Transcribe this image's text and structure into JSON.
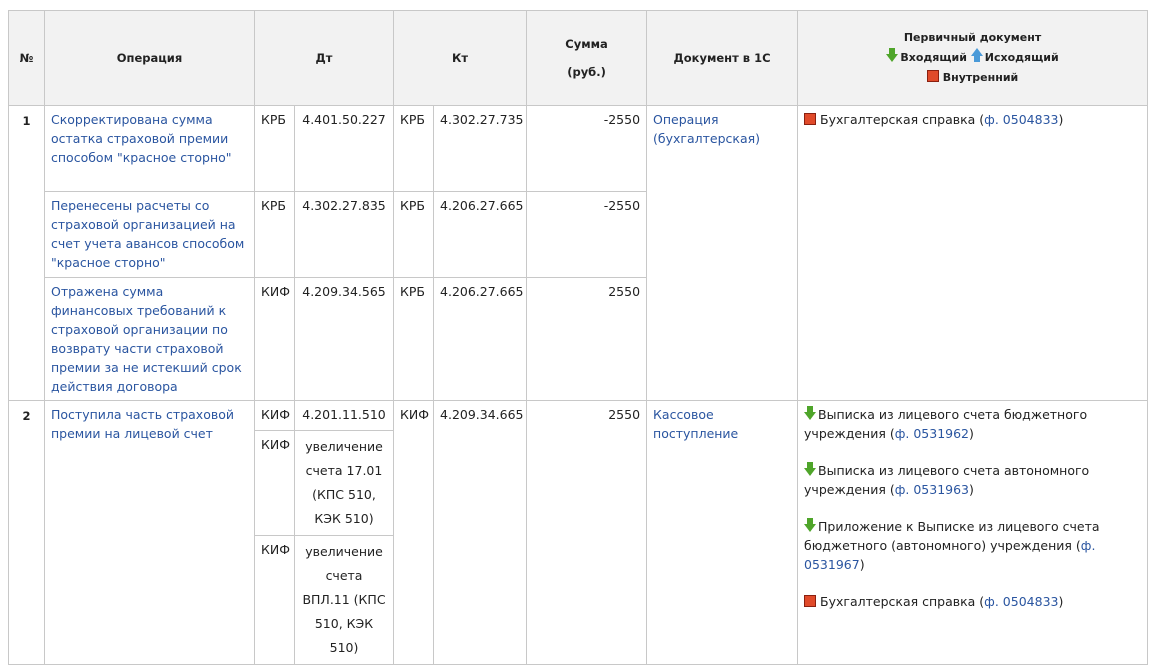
{
  "headers": {
    "num": "№",
    "operation": "Операция",
    "dt": "Дт",
    "kt": "Кт",
    "sum_line1": "Сумма",
    "sum_line2": "(руб.)",
    "doc1c": "Документ в 1С",
    "primary": "Первичный документ",
    "legend_in": "Входящий",
    "legend_out": "Исходящий",
    "legend_internal": "Внутренний"
  },
  "rows": [
    {
      "num": "1",
      "operation": "Скорректирована сумма остатка страховой премии способом \"красное сторно\"",
      "dt_type": "КРБ",
      "dt_acc": "4.401.50.227",
      "kt_type": "КРБ",
      "kt_acc": "4.302.27.735",
      "sum": "-2550",
      "doc1c": "Операция (бухгалтерская)"
    },
    {
      "operation": "Перенесены расчеты со страховой организацией на счет учета авансов способом \"красное сторно\"",
      "dt_type": "КРБ",
      "dt_acc": "4.302.27.835",
      "kt_type": "КРБ",
      "kt_acc": "4.206.27.665",
      "sum": "-2550"
    },
    {
      "operation": "Отражена сумма финансовых требований к страховой организации по возврату части страховой премии за не истекший срок действия договора",
      "dt_type": "КИФ",
      "dt_acc": "4.209.34.565",
      "kt_type": "КРБ",
      "kt_acc": "4.206.27.665",
      "sum": "2550"
    },
    {
      "num": "2",
      "operation": "Поступила часть страховой премии на лицевой счет",
      "dt_type": "КИФ",
      "dt_acc": "4.201.11.510",
      "kt_type": "КИФ",
      "kt_acc": "4.209.34.665",
      "sum": "2550",
      "doc1c": "Кассовое поступление"
    },
    {
      "dt_type": "КИФ",
      "dt_acc": "увеличение счета 17.01 (КПС 510, КЭК 510)"
    },
    {
      "dt_type": "КИФ",
      "dt_acc": "увеличение счета ВПЛ.11 (КПС 510, КЭК 510)"
    }
  ],
  "primary_docs_group1": [
    {
      "type": "internal",
      "text": "Бухгалтерская справка (",
      "link": "ф. 0504833",
      "tail": ")"
    }
  ],
  "primary_docs_group2": [
    {
      "type": "incoming",
      "text": "Выписка из лицевого счета бюджетного учреждения (",
      "link": "ф. 0531962",
      "tail": ")"
    },
    {
      "type": "incoming",
      "text": "Выписка из лицевого счета автономного учреждения (",
      "link": "ф. 0531963",
      "tail": ")"
    },
    {
      "type": "incoming",
      "text": "Приложение к Выписке из лицевого счета бюджетного (автономного) учреждения (",
      "link": "ф. 0531967",
      "tail": ")"
    },
    {
      "type": "internal",
      "text": "Бухгалтерская справка (",
      "link": "ф. 0504833",
      "tail": ")"
    }
  ],
  "colors": {
    "link": "#2a55a0",
    "incoming": "#4fa52a",
    "outgoing": "#4a9ad8",
    "internal": "#e04a2a"
  }
}
